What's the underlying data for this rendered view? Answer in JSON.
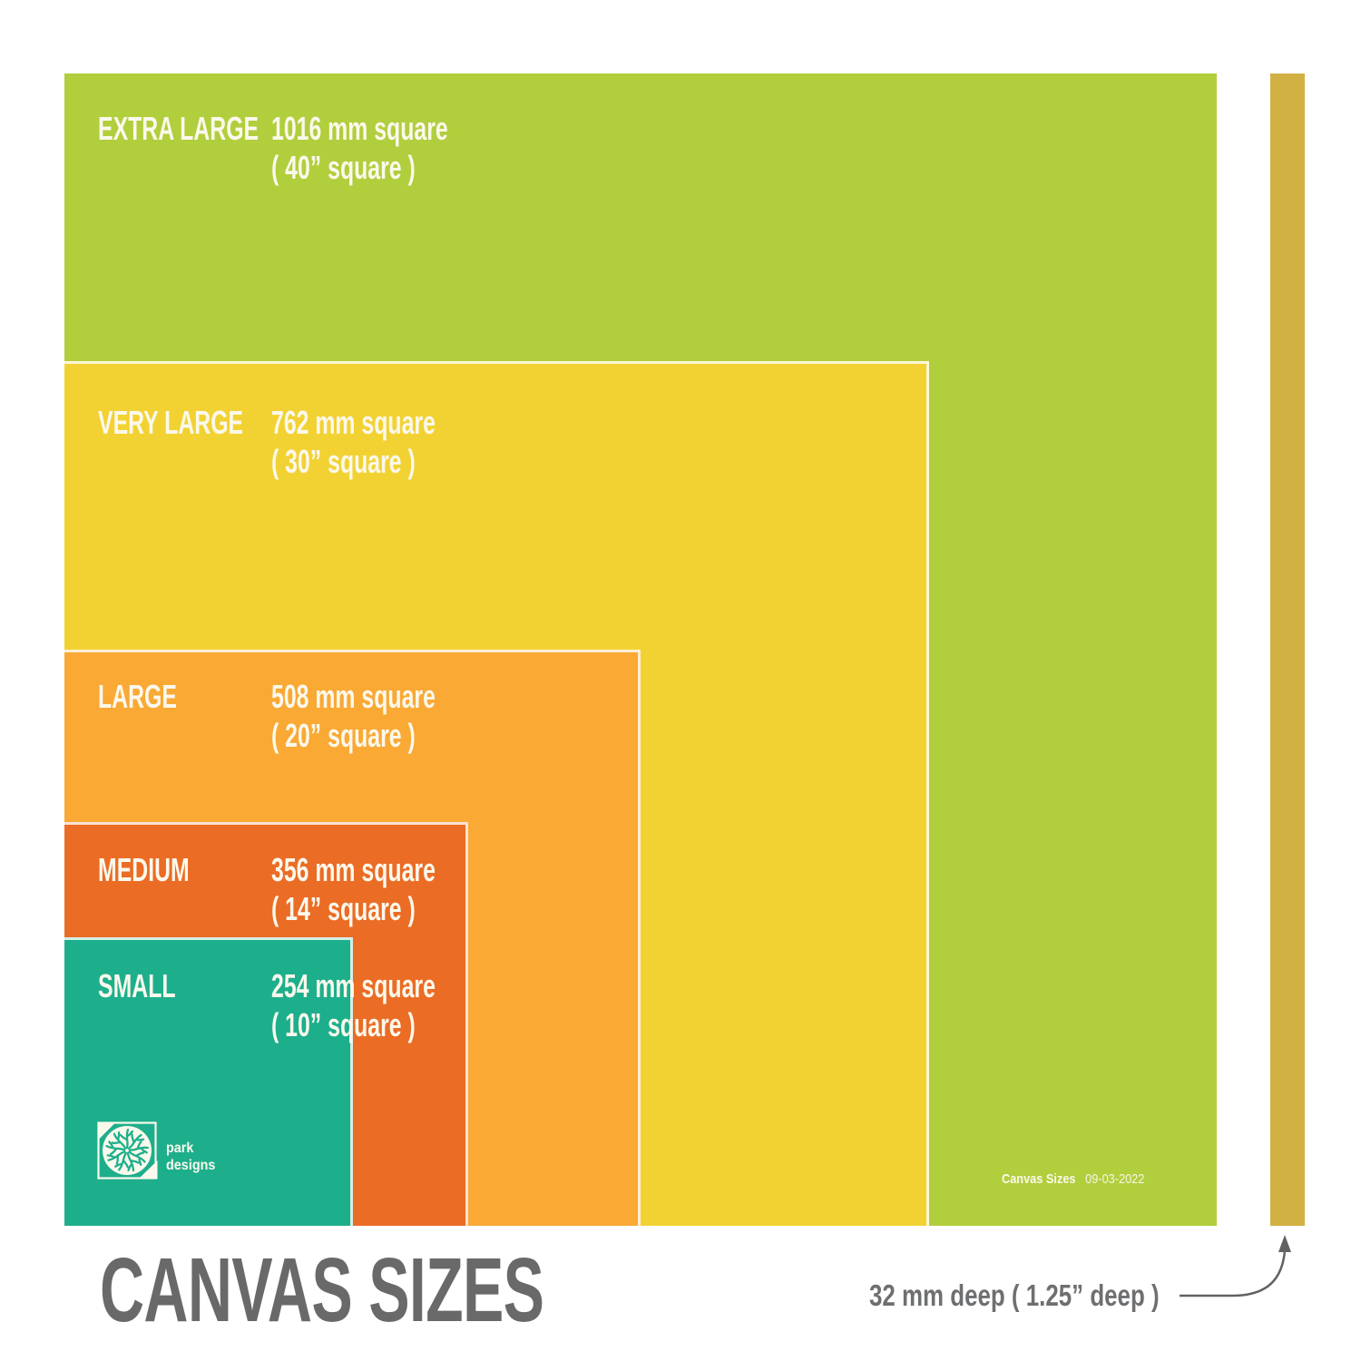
{
  "title": "CANVAS SIZES",
  "sizes": [
    {
      "name": "EXTRA LARGE",
      "mm_label": "1016 mm square",
      "in_label": "( 40” square )",
      "mm": 1016,
      "color": "#B1CE3D"
    },
    {
      "name": "VERY LARGE",
      "mm_label": "762 mm square",
      "in_label": "( 30” square )",
      "mm": 762,
      "color": "#F2D233"
    },
    {
      "name": "LARGE",
      "mm_label": "508 mm square",
      "in_label": "( 20” square )",
      "mm": 508,
      "color": "#F9A934"
    },
    {
      "name": "MEDIUM",
      "mm_label": "356 mm square",
      "in_label": "( 14” square )",
      "mm": 356,
      "color": "#EB6C25"
    },
    {
      "name": "SMALL",
      "mm_label": "254 mm square",
      "in_label": "( 10” square )",
      "mm": 254,
      "color": "#1DAF8C"
    }
  ],
  "depth": {
    "label": "32 mm deep ( 1.25” deep )",
    "mm": 32,
    "color": "#D2B144"
  },
  "footer": {
    "doc_title": "Canvas Sizes",
    "date": "09-03-2022"
  },
  "logo": {
    "line1": "park",
    "line2": "designs"
  },
  "text_color_on_squares": "#FBF8EC",
  "title_color": "#6A6969"
}
